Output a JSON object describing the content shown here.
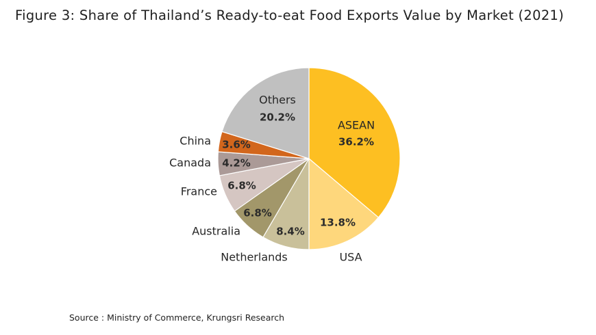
{
  "title": "Figure 3: Share of Thailand’s Ready-to-eat Food Exports Value by Market (2021)",
  "source": "Source : Ministry of Commerce, Krungsri Research",
  "chart_data": {
    "type": "pie",
    "title": "Figure 3: Share of Thailand’s Ready-to-eat Food Exports Value by Market (2021)",
    "unit": "%",
    "start": "12 o'clock, clockwise",
    "legend": "none",
    "slices": [
      {
        "label": "ASEAN",
        "value": 36.2,
        "display": "36.2%",
        "color": "#fdbf22"
      },
      {
        "label": "USA",
        "value": 13.8,
        "display": "13.8%",
        "color": "#fed77c"
      },
      {
        "label": "Netherlands",
        "value": 8.4,
        "display": "8.4%",
        "color": "#c9c09a"
      },
      {
        "label": "Australia",
        "value": 6.8,
        "display": "6.8%",
        "color": "#a2976a"
      },
      {
        "label": "France",
        "value": 6.8,
        "display": "6.8%",
        "color": "#d5c6c2"
      },
      {
        "label": "Canada",
        "value": 4.2,
        "display": "4.2%",
        "color": "#ab9a97"
      },
      {
        "label": "China",
        "value": 3.6,
        "display": "3.6%",
        "color": "#d2661c"
      },
      {
        "label": "Others",
        "value": 20.2,
        "display": "20.2%",
        "color": "#c0c0c0"
      }
    ]
  }
}
